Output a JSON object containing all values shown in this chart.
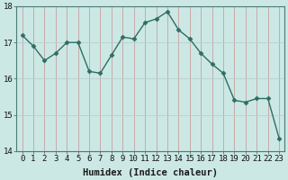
{
  "x": [
    0,
    1,
    2,
    3,
    4,
    5,
    6,
    7,
    8,
    9,
    10,
    11,
    12,
    13,
    14,
    15,
    16,
    17,
    18,
    19,
    20,
    21,
    22,
    23
  ],
  "y": [
    17.2,
    16.9,
    16.5,
    16.7,
    17.0,
    17.0,
    16.2,
    16.15,
    16.65,
    17.15,
    17.1,
    17.55,
    17.65,
    17.85,
    17.35,
    17.1,
    16.7,
    16.4,
    16.15,
    15.4,
    15.35,
    15.45,
    15.45,
    14.35
  ],
  "line_color": "#2d6e63",
  "marker": "D",
  "markersize": 2.5,
  "linewidth": 1.0,
  "xlabel": "Humidex (Indice chaleur)",
  "bg_color": "#cce8e4",
  "vgrid_color": "#c8a0a0",
  "hgrid_color": "#b8cece",
  "ylim": [
    14,
    18
  ],
  "xlim": [
    -0.5,
    23.5
  ],
  "yticks": [
    14,
    15,
    16,
    17,
    18
  ],
  "xticks": [
    0,
    1,
    2,
    3,
    4,
    5,
    6,
    7,
    8,
    9,
    10,
    11,
    12,
    13,
    14,
    15,
    16,
    17,
    18,
    19,
    20,
    21,
    22,
    23
  ],
  "xlabel_fontsize": 7.5,
  "tick_fontsize": 6.5,
  "spine_color": "#4a7a74"
}
